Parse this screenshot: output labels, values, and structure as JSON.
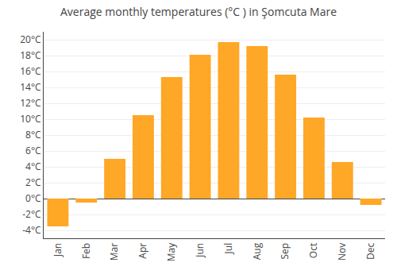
{
  "chart_data": {
    "type": "bar",
    "title": "Average monthly temperatures (°C ) in Şomcuta Mare",
    "categories": [
      "Jan",
      "Feb",
      "Mar",
      "Apr",
      "May",
      "Jun",
      "Jul",
      "Aug",
      "Sep",
      "Oct",
      "Nov",
      "Dec"
    ],
    "values": [
      -3.5,
      -0.5,
      5.0,
      10.5,
      15.3,
      18.1,
      19.7,
      19.2,
      15.6,
      10.2,
      4.6,
      -0.8
    ],
    "color": "#FFA726",
    "ylim": [
      -5,
      21
    ],
    "yticks": [
      {
        "value": -4,
        "label": "-4°C"
      },
      {
        "value": -2,
        "label": "-2°C"
      },
      {
        "value": 0,
        "label": "0°C"
      },
      {
        "value": 2,
        "label": "2°C"
      },
      {
        "value": 4,
        "label": "4°C"
      },
      {
        "value": 6,
        "label": "6°C"
      },
      {
        "value": 8,
        "label": "8°C"
      },
      {
        "value": 10,
        "label": "10°C"
      },
      {
        "value": 12,
        "label": "12°C"
      },
      {
        "value": 14,
        "label": "14°C"
      },
      {
        "value": 16,
        "label": "16°C"
      },
      {
        "value": 18,
        "label": "18°C"
      },
      {
        "value": 20,
        "label": "20°C"
      }
    ],
    "grid": true
  }
}
